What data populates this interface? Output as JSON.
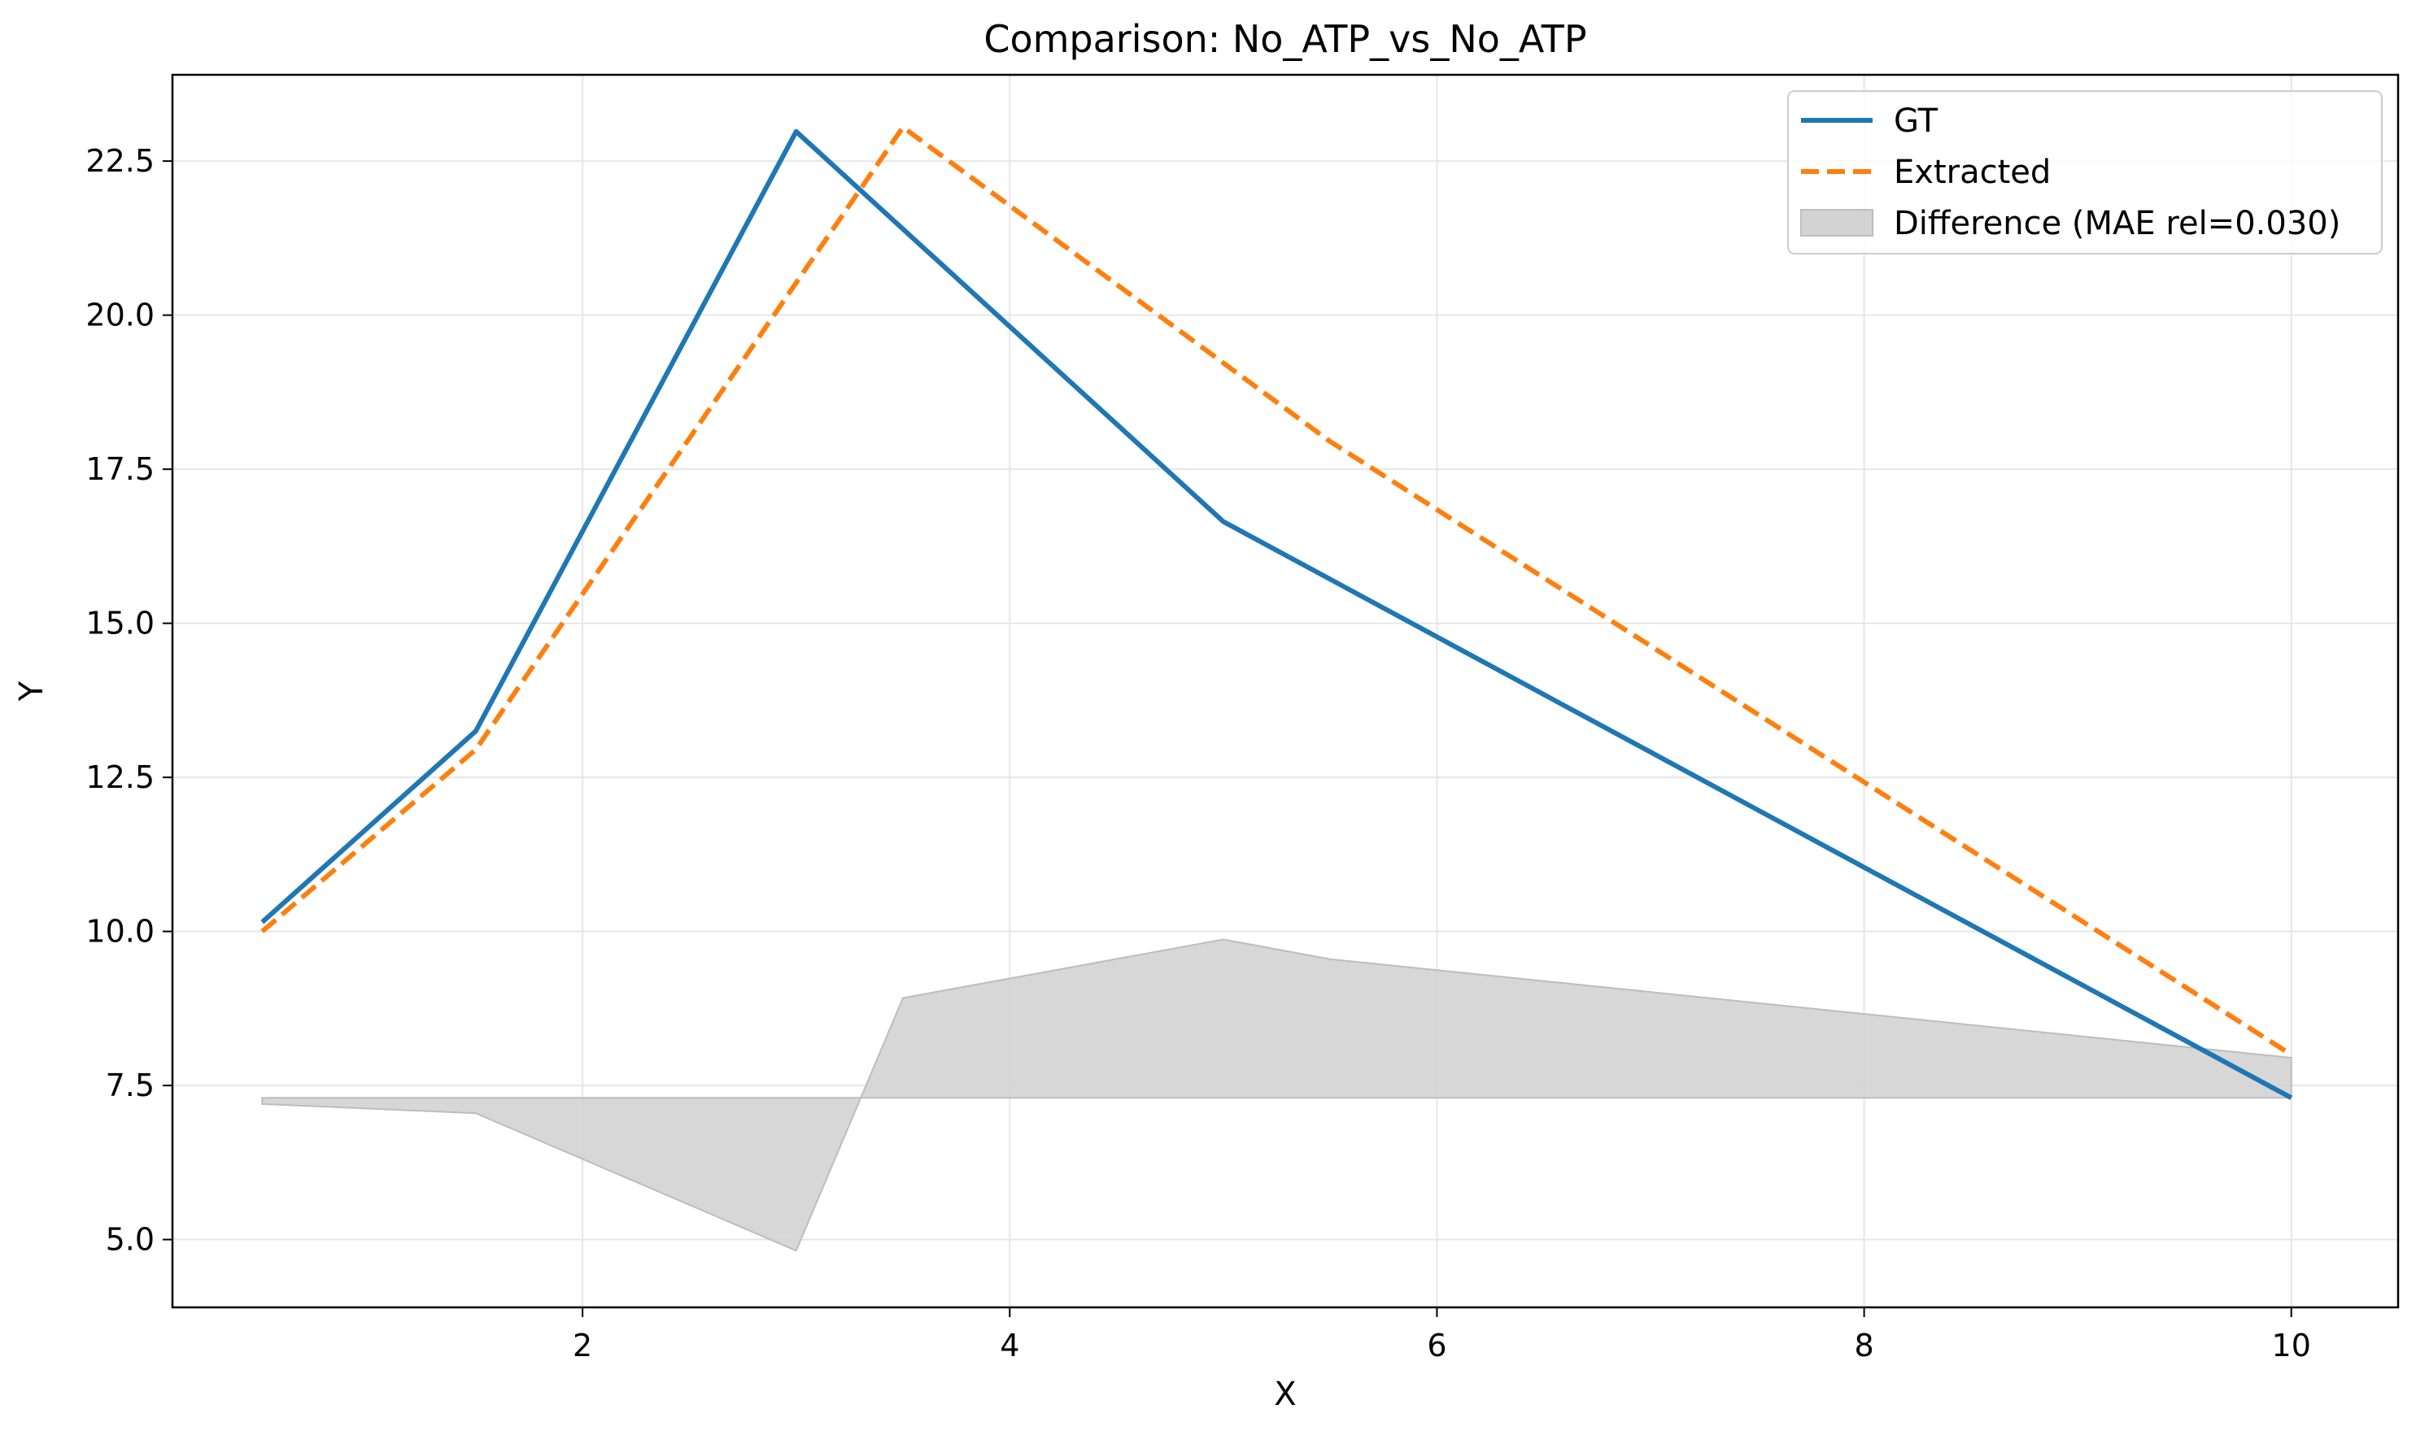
{
  "chart_data": {
    "type": "line",
    "title": "Comparison: No_ATP_vs_No_ATP",
    "xlabel": "X",
    "ylabel": "Y",
    "xlim": [
      0.08,
      10.5
    ],
    "ylim": [
      3.9,
      23.9
    ],
    "xticks": [
      2,
      4,
      6,
      8,
      10
    ],
    "xtick_labels": [
      "2",
      "4",
      "6",
      "8",
      "10"
    ],
    "yticks": [
      5.0,
      7.5,
      10.0,
      12.5,
      15.0,
      17.5,
      20.0,
      22.5
    ],
    "ytick_labels": [
      "5.0",
      "7.5",
      "10.0",
      "12.5",
      "15.0",
      "17.5",
      "20.0",
      "22.5"
    ],
    "grid": true,
    "legend_position": "top-right",
    "series": [
      {
        "name": "GT",
        "style": "solid",
        "color": "#1f77b4",
        "x": [
          0.5,
          1.5,
          3.0,
          5.0,
          10.0
        ],
        "y": [
          10.15,
          13.25,
          22.98,
          16.65,
          7.3
        ]
      },
      {
        "name": "Extracted",
        "style": "dashed",
        "color": "#ff7f0e",
        "x": [
          0.5,
          1.5,
          3.5,
          5.5,
          10.0
        ],
        "y": [
          10.0,
          12.95,
          23.05,
          17.95,
          8.0
        ]
      }
    ],
    "difference": {
      "name": "Difference (MAE rel=0.030)",
      "color": "#d3d3d3",
      "baseline": 7.3,
      "x": [
        0.5,
        1.5,
        3.0,
        3.5,
        5.0,
        5.5,
        10.0
      ],
      "y": [
        7.2,
        7.05,
        4.82,
        8.92,
        9.87,
        9.55,
        7.95
      ]
    }
  }
}
